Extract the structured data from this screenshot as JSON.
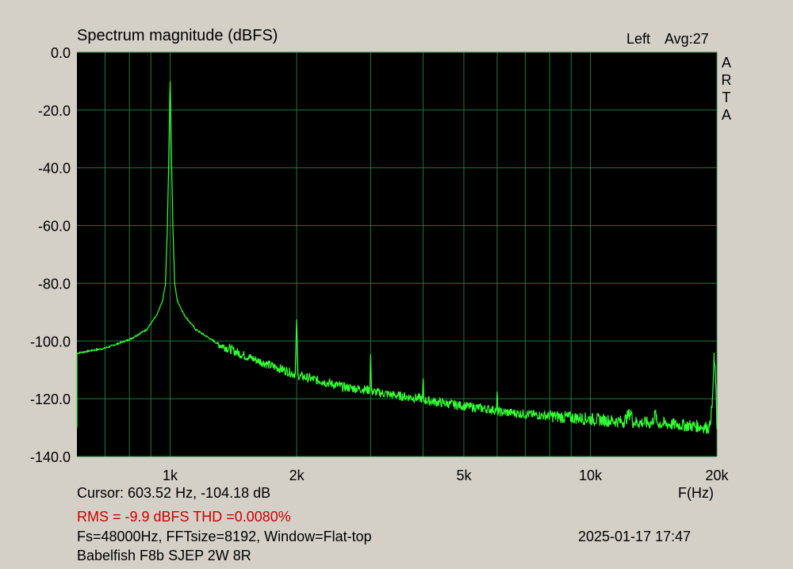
{
  "header": {
    "title": "Spectrum magnitude (dBFS)",
    "channel": "Left",
    "averages": "Avg:27",
    "brand_letters": [
      "A",
      "R",
      "T",
      "A"
    ]
  },
  "footer": {
    "cursor": "Cursor: 603.52 Hz, -104.18 dB",
    "x_unit": "F(Hz)",
    "rms_thd": "RMS =   -9.9 dBFS  THD =0.0080%",
    "params": "Fs=48000Hz, FFTsize=8192, Window=Flat-top",
    "date": "2025-01-17  17:47",
    "description": "Babelfish F8b SJEP 2W 8R"
  },
  "colors": {
    "background": "#d4d0c8",
    "plot_background": "#000000",
    "grid": "#1f7a3a",
    "trace": "#33ff33",
    "rms_text": "#cc0000"
  },
  "chart_data": {
    "type": "line",
    "title": "Spectrum magnitude (dBFS)",
    "xlabel": "F(Hz)",
    "ylabel": "",
    "xscale": "log",
    "xlim": [
      600,
      20000
    ],
    "ylim": [
      -140,
      0
    ],
    "grid": true,
    "x_ticks": [
      {
        "value": 1000,
        "label": "1k"
      },
      {
        "value": 2000,
        "label": "2k"
      },
      {
        "value": 5000,
        "label": "5k"
      },
      {
        "value": 10000,
        "label": "10k"
      },
      {
        "value": 20000,
        "label": "20k"
      }
    ],
    "y_ticks": [
      {
        "value": 0,
        "label": "0.0"
      },
      {
        "value": -20,
        "label": "-20.0"
      },
      {
        "value": -40,
        "label": "-40.0"
      },
      {
        "value": -60,
        "label": "-60.0"
      },
      {
        "value": -80,
        "label": "-80.0"
      },
      {
        "value": -100,
        "label": "-100.0"
      },
      {
        "value": -120,
        "label": "-120.0"
      },
      {
        "value": -140,
        "label": "-140.0"
      }
    ],
    "x_gridlines": [
      700,
      800,
      900,
      1000,
      2000,
      3000,
      4000,
      5000,
      6000,
      7000,
      8000,
      9000,
      10000,
      20000
    ],
    "series": [
      {
        "points": [
          [
            600,
            -104.2
          ],
          [
            700,
            -102.5
          ],
          [
            800,
            -99.5
          ],
          [
            880,
            -96
          ],
          [
            930,
            -91
          ],
          [
            960,
            -86
          ],
          [
            975,
            -80
          ],
          [
            985,
            -60
          ],
          [
            993,
            -35
          ],
          [
            998,
            -15
          ],
          [
            1000,
            -10
          ],
          [
            1002,
            -15
          ],
          [
            1007,
            -35
          ],
          [
            1015,
            -60
          ],
          [
            1025,
            -80
          ],
          [
            1040,
            -86
          ],
          [
            1080,
            -91
          ],
          [
            1150,
            -96
          ],
          [
            1300,
            -101
          ],
          [
            1500,
            -105
          ],
          [
            1700,
            -108
          ],
          [
            1900,
            -110.5
          ],
          [
            1985,
            -111.5
          ],
          [
            2000,
            -92.5
          ],
          [
            2015,
            -112
          ],
          [
            2300,
            -114
          ],
          [
            2600,
            -116
          ],
          [
            2985,
            -117
          ],
          [
            3000,
            -104.5
          ],
          [
            3015,
            -117.5
          ],
          [
            3500,
            -119
          ],
          [
            3985,
            -120
          ],
          [
            4000,
            -113
          ],
          [
            4015,
            -120.5
          ],
          [
            5000,
            -122.5
          ],
          [
            5980,
            -124
          ],
          [
            6000,
            -117.5
          ],
          [
            6020,
            -124.5
          ],
          [
            8000,
            -126
          ],
          [
            10000,
            -127
          ],
          [
            12000,
            -128
          ],
          [
            12500,
            -124.5
          ],
          [
            12600,
            -128
          ],
          [
            14000,
            -128.5
          ],
          [
            14300,
            -125
          ],
          [
            14400,
            -128.5
          ],
          [
            16000,
            -129
          ],
          [
            18000,
            -129.5
          ],
          [
            19200,
            -130
          ],
          [
            19500,
            -122
          ],
          [
            19700,
            -106
          ],
          [
            19850,
            -112
          ],
          [
            20000,
            -130
          ]
        ]
      }
    ],
    "cursor": {
      "frequency_hz": 603.52,
      "level_db": -104.18
    }
  }
}
